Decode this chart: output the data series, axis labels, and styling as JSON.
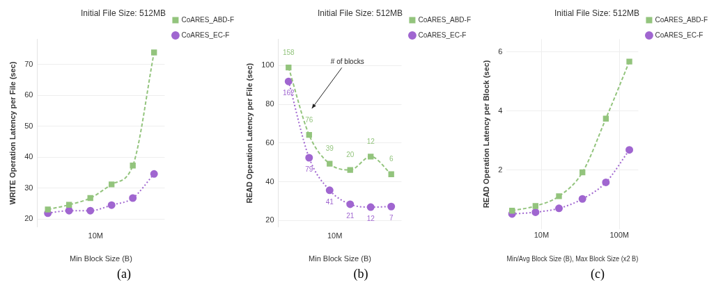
{
  "chart_data": [
    {
      "type": "line",
      "title": "Initial File Size: 512MB",
      "xlabel": "Min Block Size (B)",
      "ylabel": "WRITE Operation Latency per File (sec)",
      "categories": [
        null,
        null,
        null,
        null,
        null,
        null
      ],
      "ylim": [
        17.4,
        78.2
      ],
      "yticks": [
        20,
        30,
        40,
        50,
        60,
        70
      ],
      "grid": "y",
      "legend": "right",
      "annotations": [
        "10M",
        "(a)"
      ],
      "series": [
        {
          "name": "CoARES_ABD-F",
          "color": "#93c47d",
          "marker": "square",
          "line_style": "dashed",
          "values": [
            23.1,
            24.6,
            26.8,
            31.2,
            37.3,
            73.9
          ]
        },
        {
          "name": "CoARES_EC-F",
          "color": "#a066d0",
          "marker": "circle",
          "line_style": "dotted",
          "values": [
            21.9,
            22.7,
            22.7,
            24.5,
            26.8,
            34.6
          ]
        }
      ]
    },
    {
      "type": "line",
      "title": "Initial File Size: 512MB",
      "xlabel": "Min Block Size (B)",
      "ylabel": "READ Operation Latency per File (sec)",
      "categories": [
        null,
        null,
        null,
        null,
        null,
        null
      ],
      "ylim": [
        16.6,
        113.6
      ],
      "yticks": [
        20,
        40,
        60,
        80,
        100
      ],
      "grid": "y",
      "legend": "right",
      "annotations": [
        "10M",
        "# of blocks",
        {
          "text": "158",
          "y": 99.0
        },
        {
          "text": "76",
          "y": 64.2
        },
        {
          "text": "39",
          "y": 49.3
        },
        {
          "text": "20",
          "y": 46.1
        },
        {
          "text": "12",
          "y": 53.0
        },
        {
          "text": "6",
          "y": 43.9
        },
        {
          "text": "162",
          "y": 91.8
        },
        {
          "text": "79",
          "y": 52.4
        },
        {
          "text": "41",
          "y": 35.6
        },
        {
          "text": "21",
          "y": 28.4
        },
        {
          "text": "12",
          "y": 26.9
        },
        {
          "text": "7",
          "y": 27.2
        },
        "(b)"
      ],
      "series": [
        {
          "name": "CoARES_ABD-F",
          "color": "#93c47d",
          "marker": "square",
          "line_style": "dashed",
          "values": [
            99.0,
            64.2,
            49.3,
            46.1,
            53.0,
            43.9
          ]
        },
        {
          "name": "CoARES_EC-F",
          "color": "#a066d0",
          "marker": "circle",
          "line_style": "dotted",
          "values": [
            91.8,
            52.4,
            35.6,
            28.4,
            26.9,
            27.2
          ]
        }
      ]
    },
    {
      "type": "line",
      "title": "Initial File Size: 512MB",
      "xlabel": "Min/Avg Block Size (B), Max Block Size (x2 B)",
      "ylabel": "READ Operation Latency per Block (sec)",
      "log": "x",
      "x": [
        4194304,
        8388608,
        16777216,
        33554432,
        67108864,
        134217728
      ],
      "xlim": [
        3570000,
        175000000
      ],
      "xticks": [
        {
          "value": 10000000,
          "label": "10M"
        },
        {
          "value": 100000000,
          "label": "100M"
        }
      ],
      "ylim": [
        0,
        6.43
      ],
      "yticks": [
        2,
        4,
        6
      ],
      "grid": true,
      "legend": "right",
      "annotations": [
        "(c)"
      ],
      "series": [
        {
          "name": "CoARES_ABD-F",
          "color": "#93c47d",
          "marker": "square",
          "line_style": "dashed",
          "values": [
            0.62,
            0.78,
            1.11,
            1.92,
            3.74,
            5.67
          ]
        },
        {
          "name": "CoARES_EC-F",
          "color": "#a066d0",
          "marker": "circle",
          "line_style": "dotted",
          "values": [
            0.51,
            0.57,
            0.7,
            1.02,
            1.58,
            2.68
          ]
        }
      ]
    }
  ]
}
